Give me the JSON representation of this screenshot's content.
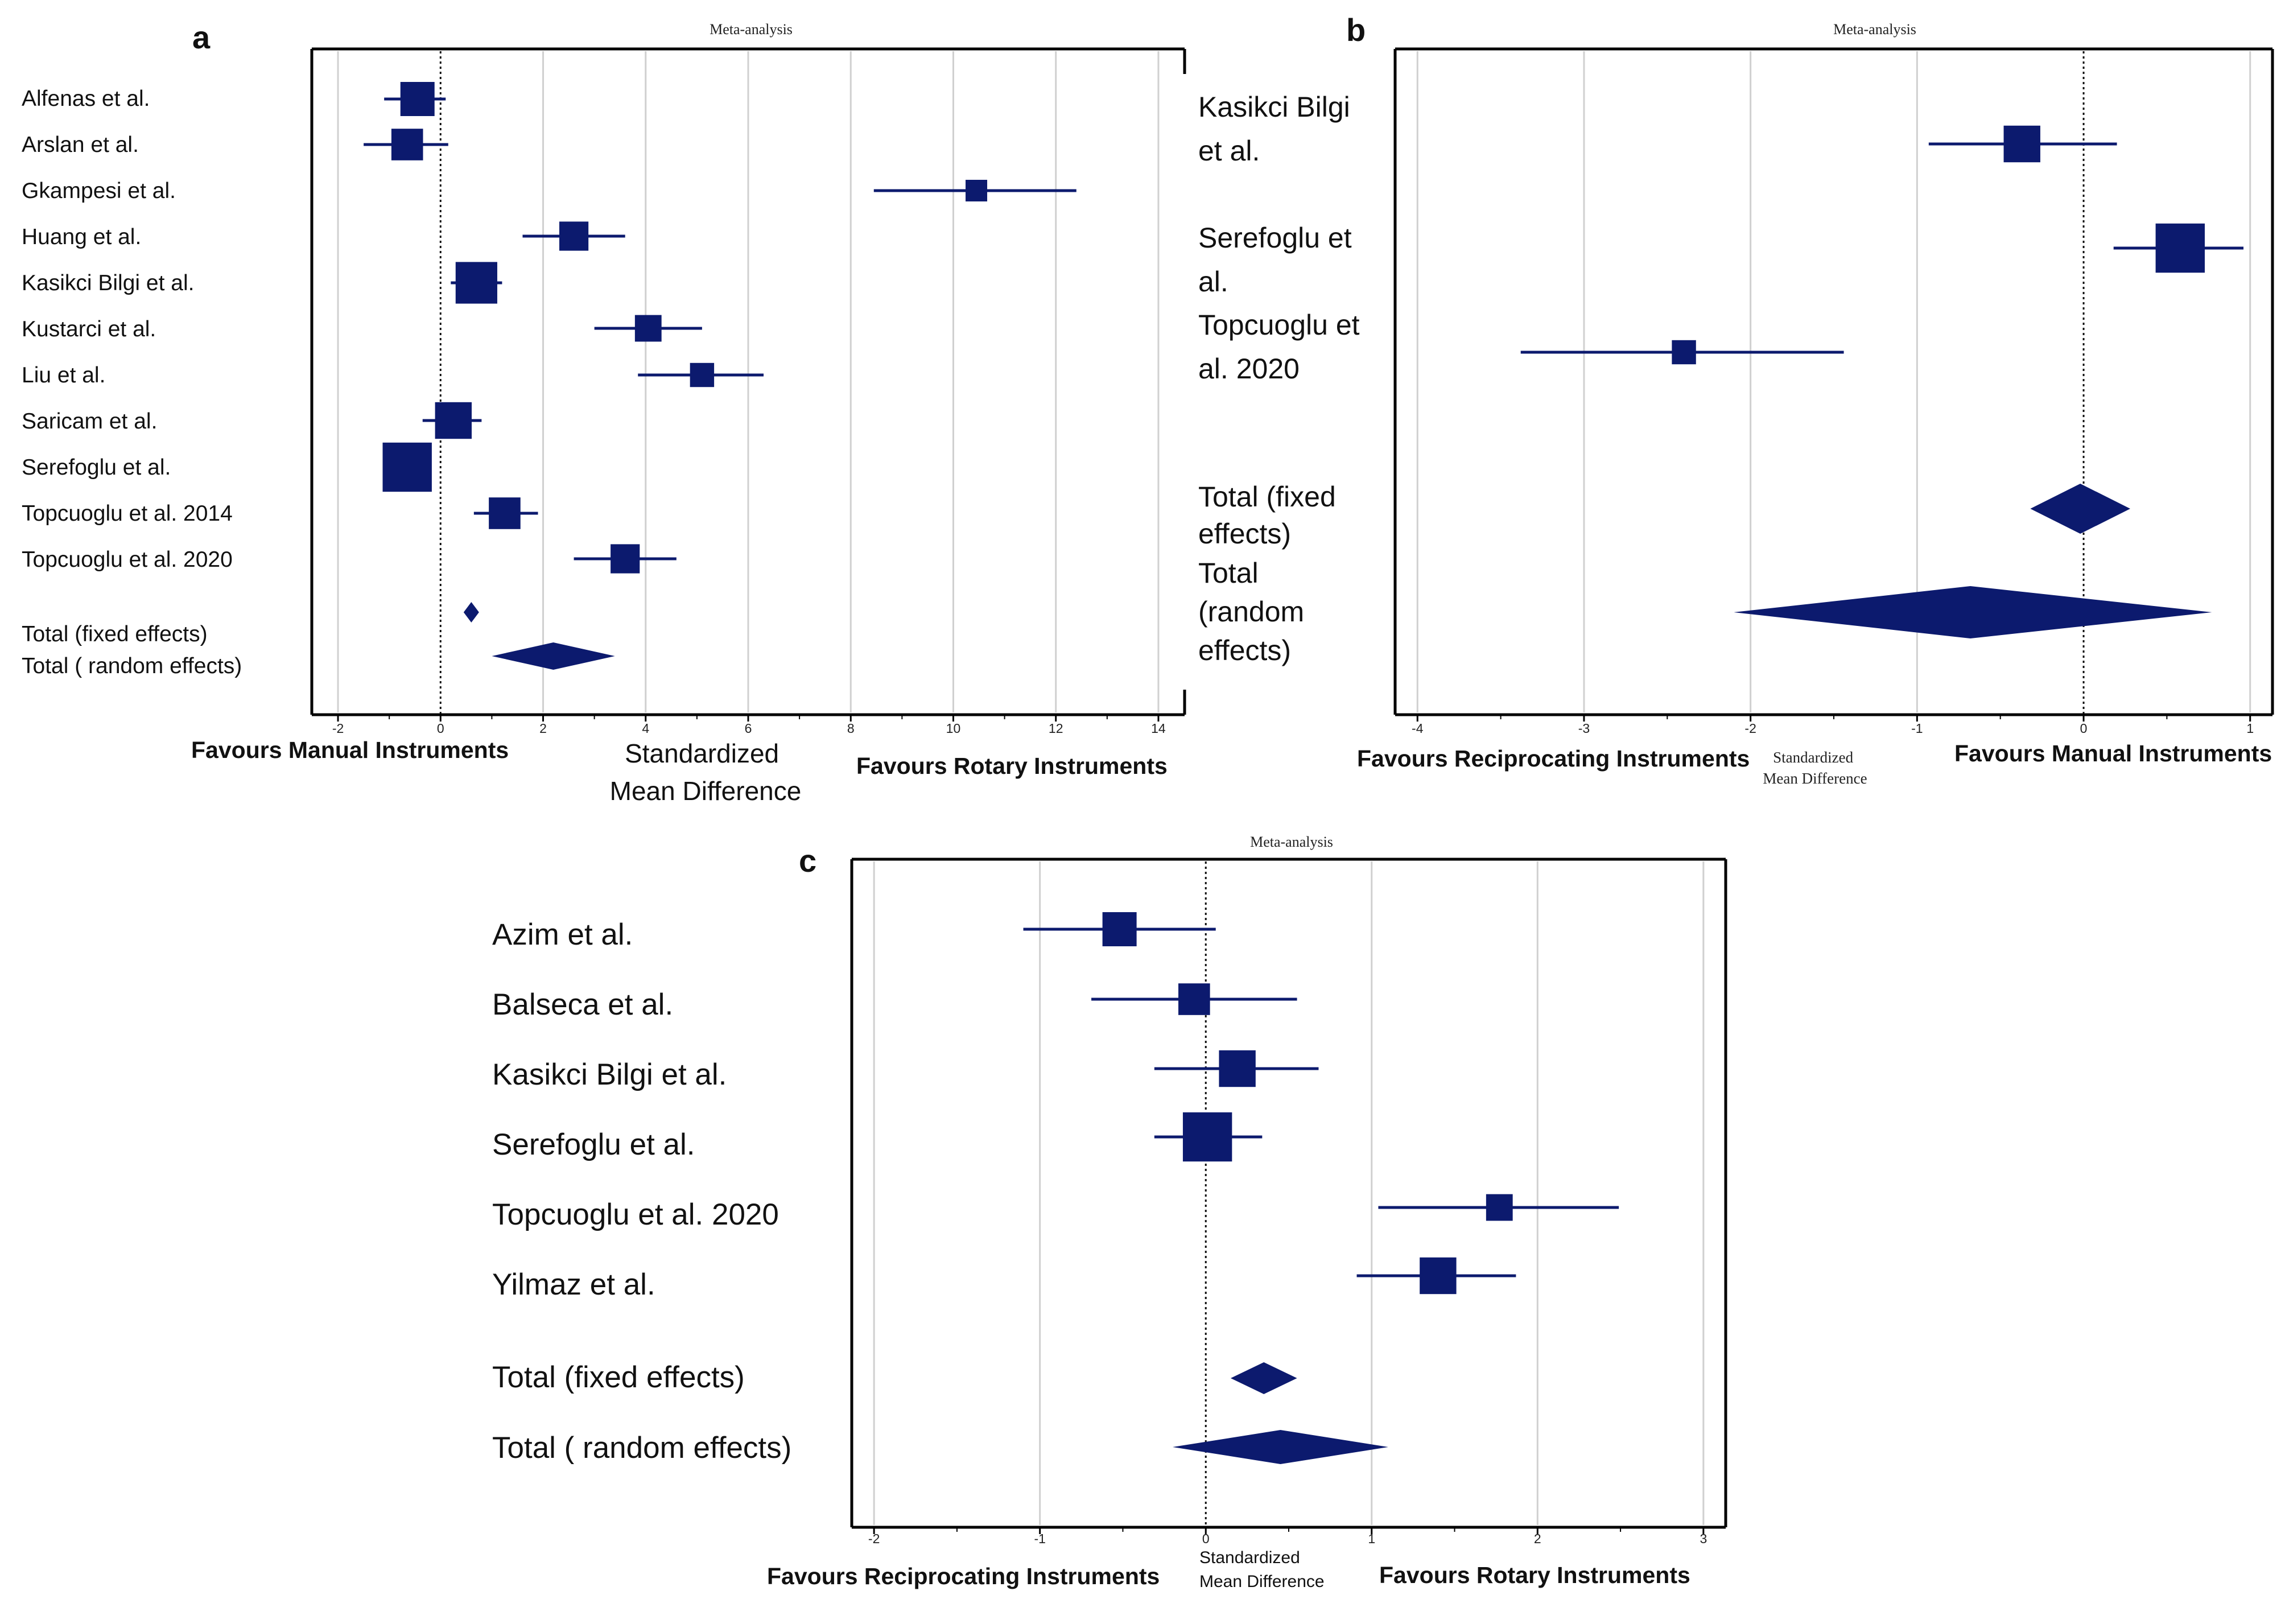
{
  "colors": {
    "mark": "#0c1a6e",
    "grid": "#d0d0d0",
    "frame": "#000000"
  },
  "chart_data": [
    {
      "type": "forest",
      "panel": "a",
      "title": "Meta-analysis",
      "xlabel": "Standardized Mean Difference",
      "favours_left": "Favours Manual Instruments",
      "favours_right": "Favours Rotary Instruments",
      "xlim": [
        -2.4,
        14.4
      ],
      "ticks": [
        -2,
        0,
        2,
        4,
        6,
        8,
        10,
        12,
        14
      ],
      "tick_labels": [
        "-2",
        "0",
        "2",
        "4",
        "6",
        "8",
        "10",
        "12",
        "14"
      ],
      "studies": [
        {
          "name": "Alfenas et al.",
          "smd": -0.45,
          "lo": -1.1,
          "hi": 0.1,
          "weight": 10
        },
        {
          "name": "Arslan et al.",
          "smd": -0.65,
          "lo": -1.5,
          "hi": 0.15,
          "weight": 9
        },
        {
          "name": "Gkampesi et al.",
          "smd": 10.45,
          "lo": 8.45,
          "hi": 12.4,
          "weight": 5
        },
        {
          "name": "Huang et al.",
          "smd": 2.6,
          "lo": 1.6,
          "hi": 3.6,
          "weight": 8
        },
        {
          "name": "Kasikci Bilgi et al.",
          "smd": 0.7,
          "lo": 0.2,
          "hi": 1.2,
          "weight": 13
        },
        {
          "name": "Kustarci et al.",
          "smd": 4.05,
          "lo": 3.0,
          "hi": 5.1,
          "weight": 7
        },
        {
          "name": "Liu et al.",
          "smd": 5.1,
          "lo": 3.85,
          "hi": 6.3,
          "weight": 6
        },
        {
          "name": "Saricam et al.",
          "smd": 0.25,
          "lo": -0.35,
          "hi": 0.8,
          "weight": 11
        },
        {
          "name": "Serefoglu et al.",
          "smd": -0.65,
          "lo": -1.0,
          "hi": -0.35,
          "weight": 16
        },
        {
          "name": "Topcuoglu et al. 2014",
          "smd": 1.25,
          "lo": 0.65,
          "hi": 1.9,
          "weight": 9
        },
        {
          "name": "Topcuoglu et al. 2020",
          "smd": 3.6,
          "lo": 2.6,
          "hi": 4.6,
          "weight": 8
        }
      ],
      "total_fixed": {
        "name": "Total (fixed effects)",
        "smd": 0.6,
        "lo": 0.45,
        "hi": 0.75
      },
      "total_random": {
        "name": "Total ( random effects)",
        "smd": 2.2,
        "lo": 1.0,
        "hi": 3.4
      }
    },
    {
      "type": "forest",
      "panel": "b",
      "title": "Meta-analysis",
      "xlabel": "Standardized Mean Difference",
      "favours_left": "Favours Reciprocating Instruments",
      "favours_right": "Favours Manual Instruments",
      "xlim": [
        -4.1,
        1.1
      ],
      "ticks": [
        -4,
        -3,
        -2,
        -1,
        0,
        1
      ],
      "tick_labels": [
        "-4",
        "-3",
        "-2",
        "-1",
        "0",
        "1"
      ],
      "studies": [
        {
          "name": "Kasikci Bilgi et al.",
          "smd": -0.37,
          "lo": -0.93,
          "hi": 0.2,
          "weight": 11
        },
        {
          "name": "Serefoglu et al.",
          "smd": 0.58,
          "lo": 0.18,
          "hi": 0.96,
          "weight": 16
        },
        {
          "name": "Topcuoglu et al. 2020",
          "smd": -2.4,
          "lo": -3.38,
          "hi": -1.44,
          "weight": 6
        }
      ],
      "total_fixed": {
        "name": "Total (fixed effects)",
        "smd": -0.02,
        "lo": -0.32,
        "hi": 0.28
      },
      "total_random": {
        "name": "Total (random effects)",
        "smd": -0.68,
        "lo": -2.1,
        "hi": 0.77
      }
    },
    {
      "type": "forest",
      "panel": "c",
      "title": "Meta-analysis",
      "xlabel": "Standardized Mean Difference",
      "favours_left": "Favours Reciprocating Instruments",
      "favours_right": "Favours Rotary Instruments",
      "xlim": [
        -2.1,
        3.1
      ],
      "ticks": [
        -2,
        -1,
        0,
        1,
        2,
        3
      ],
      "tick_labels": [
        "-2",
        "-1",
        "0",
        "1",
        "2",
        "3"
      ],
      "studies": [
        {
          "name": "Azim et al.",
          "smd": -0.52,
          "lo": -1.1,
          "hi": 0.06,
          "weight": 10
        },
        {
          "name": "Balseca et al.",
          "smd": -0.07,
          "lo": -0.69,
          "hi": 0.55,
          "weight": 9
        },
        {
          "name": "Kasikci Bilgi et al.",
          "smd": 0.19,
          "lo": -0.31,
          "hi": 0.68,
          "weight": 11
        },
        {
          "name": "Serefoglu et al.",
          "smd": 0.01,
          "lo": -0.31,
          "hi": 0.34,
          "weight": 16
        },
        {
          "name": "Topcuoglu et al. 2020",
          "smd": 1.77,
          "lo": 1.04,
          "hi": 2.49,
          "weight": 7
        },
        {
          "name": "Yilmaz et al.",
          "smd": 1.4,
          "lo": 0.91,
          "hi": 1.87,
          "weight": 11
        }
      ],
      "total_fixed": {
        "name": "Total (fixed effects)",
        "smd": 0.35,
        "lo": 0.15,
        "hi": 0.55
      },
      "total_random": {
        "name": "Total ( random effects)",
        "smd": 0.45,
        "lo": -0.2,
        "hi": 1.1
      }
    }
  ]
}
